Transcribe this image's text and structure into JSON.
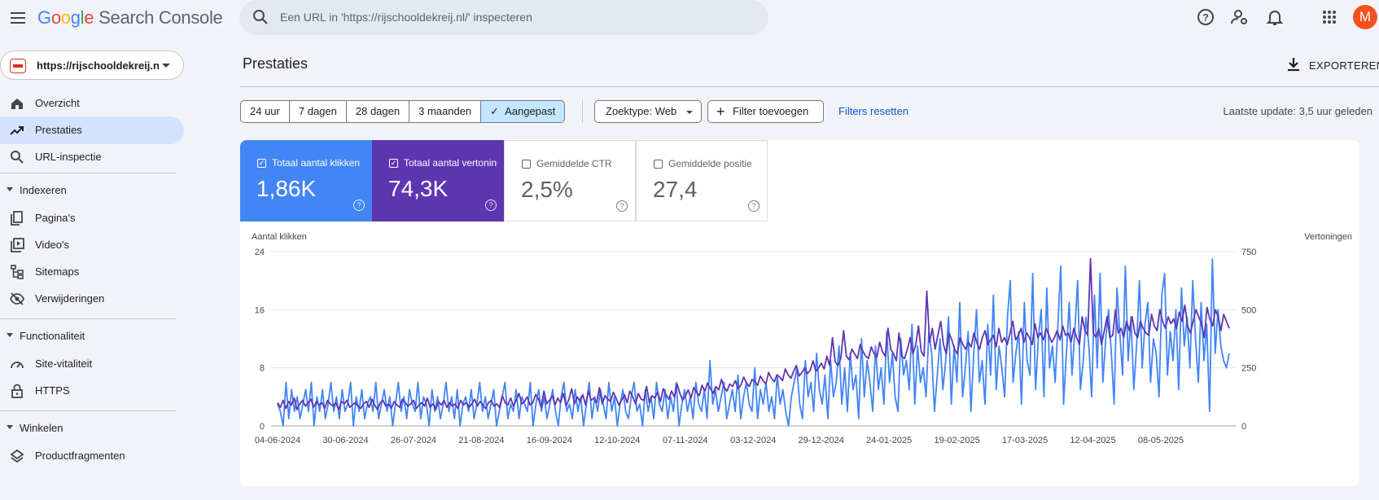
{
  "header": {
    "logo_letters": [
      "G",
      "o",
      "o",
      "g",
      "l",
      "e"
    ],
    "product": "Search Console",
    "search_placeholder": "Een URL in 'https://rijschooldekreij.nl/' inspecteren",
    "avatar_letter": "M",
    "icons": [
      "menu-icon",
      "search-icon",
      "help-icon",
      "manage-users-icon",
      "notifications-icon",
      "apps-grid-icon"
    ]
  },
  "sidebar": {
    "property": "https://rijschooldekreij.nl/",
    "items": [
      {
        "label": "Overzicht",
        "icon": "home-icon"
      },
      {
        "label": "Prestaties",
        "icon": "trending-up-icon",
        "active": true
      },
      {
        "label": "URL-inspectie",
        "icon": "search-icon"
      }
    ],
    "sections": [
      {
        "label": "Indexeren",
        "items": [
          {
            "label": "Pagina's",
            "icon": "pages-icon"
          },
          {
            "label": "Video's",
            "icon": "video-icon"
          },
          {
            "label": "Sitemaps",
            "icon": "sitemap-icon"
          },
          {
            "label": "Verwijderingen",
            "icon": "visibility-off-icon"
          }
        ]
      },
      {
        "label": "Functionaliteit",
        "items": [
          {
            "label": "Site-vitaliteit",
            "icon": "speed-icon"
          },
          {
            "label": "HTTPS",
            "icon": "lock-icon"
          }
        ]
      },
      {
        "label": "Winkelen",
        "items": [
          {
            "label": "Productfragmenten",
            "icon": "layers-icon"
          }
        ]
      }
    ]
  },
  "main": {
    "title": "Prestaties",
    "export_label": "EXPORTEREN",
    "ranges": [
      "24 uur",
      "7 dagen",
      "28 dagen",
      "3 maanden",
      "Aangepast"
    ],
    "selected_range": "Aangepast",
    "search_type": "Zoektype: Web",
    "add_filter": "Filter toevoegen",
    "reset_filters": "Filters resetten",
    "last_update": "Laatste update: 3,5 uur geleden",
    "metrics": [
      {
        "label": "Totaal aantal klikken",
        "value": "1,86K",
        "checked": true,
        "color": "#4285f4"
      },
      {
        "label": "Totaal aantal vertoningen",
        "value": "74,3K",
        "checked": true,
        "color": "#5e35b1"
      },
      {
        "label": "Gemiddelde CTR",
        "value": "2,5%",
        "checked": false
      },
      {
        "label": "Gemiddelde positie",
        "value": "27,4",
        "checked": false
      }
    ]
  },
  "chart_data": {
    "type": "line",
    "y_left_label": "Aantal klikken",
    "y_right_label": "Vertoningen",
    "y_left_ticks": [
      "24",
      "16",
      "8",
      "0"
    ],
    "y_right_ticks": [
      "750",
      "500",
      "250",
      "0"
    ],
    "ylim_left": [
      0,
      24
    ],
    "ylim_right": [
      0,
      750
    ],
    "x_start": "04-06-2024",
    "x_tick_labels": [
      "04-06-2024",
      "30-06-2024",
      "26-07-2024",
      "21-08-2024",
      "16-09-2024",
      "12-10-2024",
      "07-11-2024",
      "03-12-2024",
      "29-12-2024",
      "24-01-2025",
      "19-02-2025",
      "17-03-2025",
      "12-04-2025",
      "08-05-2025"
    ],
    "grid": true,
    "series": [
      {
        "name": "Totaal aantal klikken",
        "axis": "left",
        "color": "#4285f4",
        "values": [
          3,
          2,
          0,
          6,
          1,
          5,
          2,
          4,
          1,
          3,
          5,
          2,
          6,
          0,
          4,
          2,
          5,
          1,
          3,
          6,
          2,
          4,
          1,
          5,
          2,
          3,
          6,
          0,
          4,
          2,
          5,
          1,
          3,
          4,
          2,
          6,
          1,
          3,
          5,
          2,
          4,
          0,
          3,
          6,
          2,
          4,
          1,
          5,
          3,
          2,
          6,
          1,
          4,
          3,
          0,
          5,
          2,
          4,
          1,
          3,
          6,
          2,
          4,
          1,
          5,
          0,
          3,
          4,
          2,
          5,
          1,
          3,
          6,
          2,
          4,
          1,
          3,
          5,
          0,
          2,
          4,
          6,
          1,
          3,
          2,
          5,
          1,
          4,
          3,
          2,
          6,
          0,
          3,
          5,
          2,
          4,
          1,
          3,
          5,
          2,
          0,
          4,
          6,
          2,
          3,
          1,
          5,
          2,
          4,
          0,
          3,
          6,
          1,
          4,
          2,
          5,
          3,
          1,
          6,
          2,
          4,
          0,
          3,
          5,
          2,
          1,
          4,
          6,
          2,
          3,
          0,
          5,
          2,
          4,
          1,
          6,
          3,
          2,
          5,
          1,
          4,
          2,
          6,
          0,
          3,
          5,
          2,
          4,
          1,
          6,
          3,
          2,
          5,
          1,
          9,
          3,
          5,
          2,
          4,
          6,
          1,
          3,
          5,
          2,
          7,
          1,
          4,
          6,
          3,
          2,
          8,
          1,
          5,
          3,
          6,
          2,
          4,
          1,
          7,
          3,
          5,
          2,
          0,
          4,
          6,
          8,
          3,
          1,
          9,
          4,
          6,
          2,
          10,
          5,
          3,
          7,
          1,
          9,
          4,
          6,
          11,
          3,
          8,
          2,
          10,
          5,
          7,
          1,
          12,
          4,
          9,
          6,
          2,
          11,
          5,
          8,
          3,
          13,
          6,
          10,
          4,
          2,
          12,
          7,
          9,
          5,
          14,
          3,
          11,
          6,
          8,
          4,
          13,
          10,
          2,
          7,
          12,
          5,
          9,
          15,
          3,
          11,
          6,
          17,
          4,
          8,
          13,
          2,
          10,
          16,
          6,
          9,
          3,
          14,
          7,
          18,
          5,
          11,
          8,
          4,
          15,
          20,
          6,
          10,
          13,
          3,
          17,
          9,
          7,
          21,
          5,
          12,
          16,
          4,
          19,
          8,
          11,
          6,
          14,
          22,
          3,
          10,
          17,
          7,
          13,
          20,
          5,
          9,
          15,
          11,
          4,
          18,
          8,
          21,
          6,
          12,
          16,
          10,
          3,
          19,
          13,
          7,
          22,
          9,
          15,
          5,
          11,
          20,
          8,
          14,
          17,
          6,
          12,
          10,
          4,
          18,
          21,
          7,
          13,
          9,
          16,
          5,
          19,
          11,
          15,
          8,
          20,
          12,
          6,
          17,
          9,
          14,
          2,
          23,
          10,
          16,
          11,
          9,
          8,
          10
        ]
      },
      {
        "name": "Totaal aantal vertoningen",
        "axis": "right",
        "color": "#5e35b1",
        "values": [
          100,
          80,
          110,
          75,
          105,
          90,
          120,
          70,
          95,
          110,
          85,
          100,
          115,
          80,
          105,
          90,
          100,
          75,
          110,
          95,
          85,
          100,
          70,
          105,
          95,
          110,
          80,
          90,
          100,
          85,
          75,
          95,
          105,
          80,
          115,
          90,
          70,
          100,
          110,
          85,
          95,
          75,
          105,
          90,
          80,
          115,
          100,
          85,
          95,
          110,
          75,
          90,
          100,
          85,
          120,
          80,
          95,
          70,
          105,
          90,
          110,
          80,
          100,
          85,
          95,
          75,
          110,
          90,
          100,
          80,
          95,
          115,
          85,
          105,
          90,
          75,
          100,
          110,
          85,
          95,
          80,
          130,
          100,
          90,
          120,
          85,
          110,
          140,
          95,
          105,
          125,
          90,
          100,
          135,
          115,
          80,
          150,
          95,
          110,
          130,
          90,
          120,
          100,
          140,
          85,
          115,
          160,
          95,
          125,
          105,
          135,
          90,
          150,
          110,
          120,
          100,
          165,
          95,
          130,
          115,
          105,
          145,
          120,
          90,
          110,
          135,
          100,
          150,
          125,
          95,
          140,
          115,
          110,
          170,
          100,
          130,
          120,
          145,
          105,
          160,
          135,
          115,
          150,
          125,
          180,
          140,
          110,
          130,
          155,
          120,
          165,
          145,
          130,
          175,
          150,
          185,
          160,
          140,
          170,
          155,
          200,
          165,
          150,
          180,
          170,
          195,
          160,
          175,
          210,
          185,
          170,
          200,
          190,
          175,
          215,
          195,
          180,
          230,
          205,
          190,
          220,
          210,
          195,
          245,
          220,
          205,
          235,
          260,
          215,
          230,
          250,
          225,
          240,
          280,
          235,
          250,
          270,
          245,
          300,
          260,
          380,
          275,
          260,
          290,
          410,
          300,
          285,
          330,
          310,
          290,
          350,
          320,
          300,
          290,
          340,
          310,
          295,
          360,
          320,
          300,
          420,
          330,
          310,
          280,
          400,
          300,
          290,
          330,
          380,
          310,
          350,
          430,
          320,
          300,
          580,
          360,
          420,
          330,
          390,
          450,
          350,
          310,
          400,
          370,
          330,
          310,
          380,
          350,
          330,
          360,
          340,
          400,
          360,
          330,
          380,
          410,
          350,
          370,
          390,
          340,
          420,
          360,
          380,
          350,
          400,
          450,
          370,
          390,
          420,
          360,
          400,
          380,
          350,
          440,
          380,
          400,
          370,
          420,
          390,
          360,
          380,
          410,
          370,
          430,
          390,
          400,
          360,
          420,
          380,
          350,
          470,
          410,
          390,
          720,
          400,
          380,
          420,
          350,
          410,
          470,
          380,
          390,
          500,
          400,
          420,
          380,
          450,
          410,
          470,
          400,
          380,
          450,
          420,
          400,
          390,
          480,
          430,
          410,
          500,
          450,
          420,
          470,
          440,
          460,
          420,
          490,
          450,
          520,
          430,
          400,
          450,
          500,
          470,
          440,
          380,
          510,
          460,
          430,
          500,
          470,
          410,
          480,
          450,
          420
        ]
      }
    ]
  }
}
